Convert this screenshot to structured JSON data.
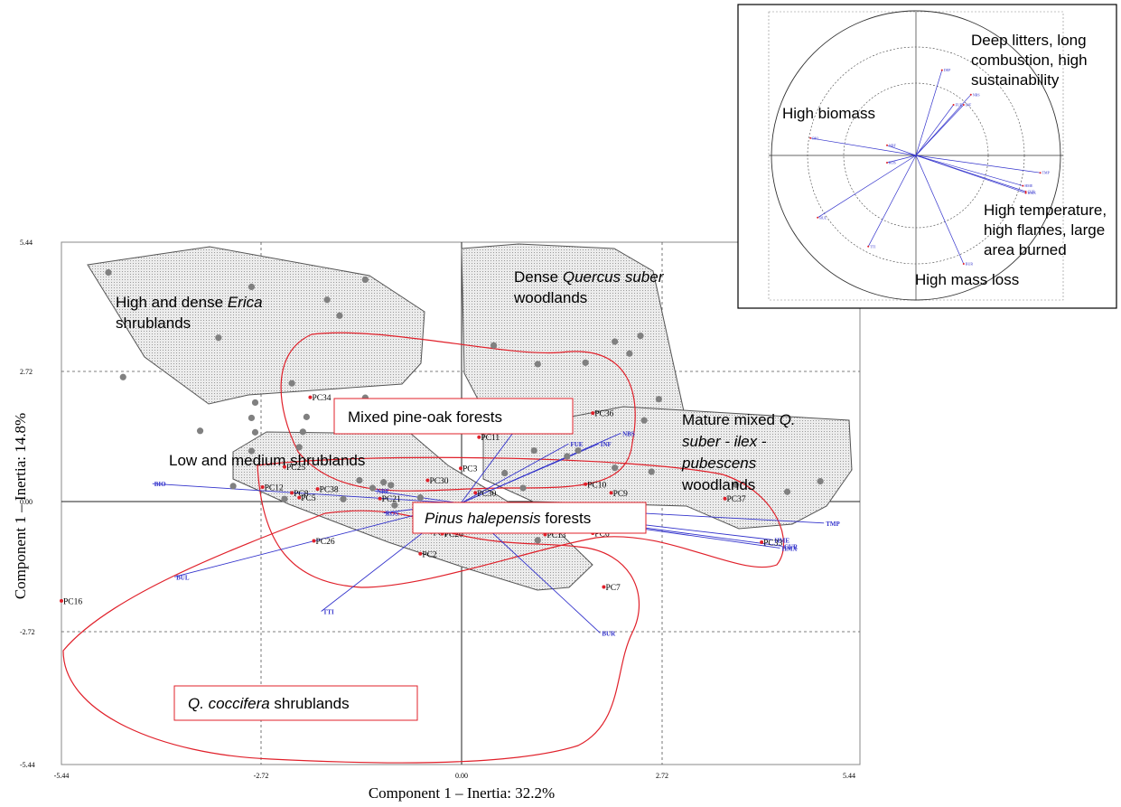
{
  "chart_data": [
    {
      "type": "scatter",
      "title": "",
      "xlabel": "Component 1 – Inertia: 32.2%",
      "ylabel": "Component 1 – Inertia: 14.8%",
      "xlim": [
        -5.44,
        5.44
      ],
      "ylim": [
        -5.44,
        5.44
      ],
      "x_ticks": [
        "-5.44",
        "-2.72",
        "0.00",
        "2.72",
        "5.44"
      ],
      "y_ticks": [
        "5.44",
        "2.72",
        "0.00",
        "-2.72",
        "-5.44"
      ],
      "grid": "dashed",
      "labeled_points": [
        {
          "label": "PC34",
          "x": -2.05,
          "y": 2.21
        },
        {
          "label": "PC36",
          "x": 1.8,
          "y": 1.88
        },
        {
          "label": "PC11",
          "x": 0.25,
          "y": 1.38
        },
        {
          "label": "PC25",
          "x": -2.4,
          "y": 0.76
        },
        {
          "label": "PC3",
          "x": 0.0,
          "y": 0.73
        },
        {
          "label": "PC30",
          "x": -0.45,
          "y": 0.48
        },
        {
          "label": "PC12",
          "x": -2.7,
          "y": 0.34
        },
        {
          "label": "PC38",
          "x": -1.95,
          "y": 0.3
        },
        {
          "label": "PC8",
          "x": -2.3,
          "y": 0.22
        },
        {
          "label": "PC5",
          "x": -2.2,
          "y": 0.12
        },
        {
          "label": "PC21",
          "x": -1.1,
          "y": 0.1
        },
        {
          "label": "PC10",
          "x": 1.7,
          "y": 0.4
        },
        {
          "label": "PC9",
          "x": 2.05,
          "y": 0.22
        },
        {
          "label": "PC37",
          "x": 3.6,
          "y": 0.1
        },
        {
          "label": "PC30",
          "x": 0.2,
          "y": 0.22
        },
        {
          "label": "PC17",
          "x": -0.4,
          "y": -0.6
        },
        {
          "label": "PC20",
          "x": -0.25,
          "y": -0.63
        },
        {
          "label": "PC13",
          "x": 1.15,
          "y": -0.65
        },
        {
          "label": "PC6",
          "x": 1.8,
          "y": -0.62
        },
        {
          "label": "PC4",
          "x": 2.1,
          "y": -0.48
        },
        {
          "label": "PC26",
          "x": -2.0,
          "y": -0.78
        },
        {
          "label": "PC2",
          "x": -0.55,
          "y": -1.05
        },
        {
          "label": "PC7",
          "x": 1.95,
          "y": -1.74
        },
        {
          "label": "PC16",
          "x": -5.44,
          "y": -2.03
        },
        {
          "label": "PC33",
          "x": 4.1,
          "y": -0.81
        }
      ],
      "unlabeled_points": [
        {
          "x": -4.8,
          "y": 4.81
        },
        {
          "x": -4.6,
          "y": 2.63
        },
        {
          "x": -3.3,
          "y": 3.45
        },
        {
          "x": -2.85,
          "y": 4.51
        },
        {
          "x": -2.8,
          "y": 2.1
        },
        {
          "x": -2.3,
          "y": 2.5
        },
        {
          "x": -1.82,
          "y": 4.24
        },
        {
          "x": -1.65,
          "y": 3.91
        },
        {
          "x": -1.3,
          "y": 2.2
        },
        {
          "x": -1.3,
          "y": 4.66
        },
        {
          "x": -1.47,
          "y": 2.03
        },
        {
          "x": -2.85,
          "y": 1.78
        },
        {
          "x": -2.8,
          "y": 1.48
        },
        {
          "x": -2.1,
          "y": 1.8
        },
        {
          "x": -2.15,
          "y": 1.49
        },
        {
          "x": -2.85,
          "y": 1.09
        },
        {
          "x": -3.55,
          "y": 1.51
        },
        {
          "x": -2.2,
          "y": 1.17
        },
        {
          "x": 0.45,
          "y": 3.29
        },
        {
          "x": 1.05,
          "y": 2.9
        },
        {
          "x": 1.7,
          "y": 2.93
        },
        {
          "x": 2.1,
          "y": 3.37
        },
        {
          "x": 2.3,
          "y": 3.12
        },
        {
          "x": 2.45,
          "y": 3.49
        },
        {
          "x": 2.7,
          "y": 2.17
        },
        {
          "x": 2.5,
          "y": 1.73
        },
        {
          "x": 0.35,
          "y": 2.04
        },
        {
          "x": 1.1,
          "y": 1.78
        },
        {
          "x": 1.4,
          "y": 1.53
        },
        {
          "x": 2.1,
          "y": 0.74
        },
        {
          "x": 1.6,
          "y": 1.1
        },
        {
          "x": 1.45,
          "y": 0.98
        },
        {
          "x": 0.6,
          "y": 0.63
        },
        {
          "x": 0.85,
          "y": 0.32
        },
        {
          "x": 1.0,
          "y": 1.1
        },
        {
          "x": 3.75,
          "y": 0.39
        },
        {
          "x": 4.45,
          "y": 0.24
        },
        {
          "x": 4.9,
          "y": 0.46
        },
        {
          "x": 2.6,
          "y": 0.66
        },
        {
          "x": -3.1,
          "y": 0.36
        },
        {
          "x": -2.4,
          "y": 0.09
        },
        {
          "x": -1.6,
          "y": 0.09
        },
        {
          "x": -1.2,
          "y": 0.32
        },
        {
          "x": -1.05,
          "y": 0.44
        },
        {
          "x": -0.95,
          "y": 0.38
        },
        {
          "x": -0.55,
          "y": 0.12
        },
        {
          "x": -0.9,
          "y": -0.04
        },
        {
          "x": -1.38,
          "y": 0.48
        },
        {
          "x": -0.25,
          "y": -0.36
        },
        {
          "x": 0.35,
          "y": -0.48
        },
        {
          "x": 0.6,
          "y": -0.41
        },
        {
          "x": 0.65,
          "y": -0.49
        },
        {
          "x": 0.2,
          "y": -0.51
        },
        {
          "x": 1.05,
          "y": -0.48
        },
        {
          "x": 1.05,
          "y": -0.77
        },
        {
          "x": 0.7,
          "y": -0.5
        },
        {
          "x": -0.4,
          "y": -0.51
        }
      ],
      "variable_vectors": [
        {
          "label": "DEP",
          "x": 1.02,
          "y": 2.1
        },
        {
          "label": "NBS",
          "x": 2.18,
          "y": 1.46
        },
        {
          "label": "FUE",
          "x": 1.47,
          "y": 1.24
        },
        {
          "label": "INF",
          "x": 1.88,
          "y": 1.24
        },
        {
          "label": "BIO",
          "x": -4.2,
          "y": 0.41
        },
        {
          "label": "NBF",
          "x": -1.17,
          "y": 0.26
        },
        {
          "label": "ROS",
          "x": -1.05,
          "y": -0.2
        },
        {
          "label": "TMP",
          "x": 4.95,
          "y": -0.41
        },
        {
          "label": "HME",
          "x": 4.25,
          "y": -0.76
        },
        {
          "label": "CUR",
          "x": 4.38,
          "y": -0.89
        },
        {
          "label": "HMX",
          "x": 4.35,
          "y": -0.93
        },
        {
          "label": "BUL",
          "x": -3.9,
          "y": -1.53
        },
        {
          "label": "TTI",
          "x": -1.9,
          "y": -2.25
        },
        {
          "label": "BUR",
          "x": 1.9,
          "y": -2.7
        }
      ],
      "annotations": [
        "High and dense Erica shrublands",
        "Dense Quercus suber woodlands",
        "Mixed pine-oak forests",
        "Mature mixed Q. suber - ilex - pubescens woodlands",
        "Low and medium shrublands",
        "Pinus halepensis forests",
        "Q. coccifera shrublands"
      ]
    },
    {
      "type": "scatter",
      "title": "",
      "annotations": [
        "Deep litters, long combustion, high sustainability",
        "High biomass",
        "High temperature, high flames, large area burned",
        "High mass loss"
      ],
      "variable_vectors": [
        {
          "label": "DEP",
          "x": 0.18,
          "y": 0.59
        },
        {
          "label": "NBS",
          "x": 0.38,
          "y": 0.42
        },
        {
          "label": "FUE",
          "x": 0.26,
          "y": 0.35
        },
        {
          "label": "INF",
          "x": 0.33,
          "y": 0.35
        },
        {
          "label": "BIO",
          "x": -0.73,
          "y": 0.12
        },
        {
          "label": "NBF",
          "x": -0.2,
          "y": 0.07
        },
        {
          "label": "ROS",
          "x": -0.2,
          "y": -0.05
        },
        {
          "label": "TMP",
          "x": 0.86,
          "y": -0.12
        },
        {
          "label": "HME",
          "x": 0.74,
          "y": -0.21
        },
        {
          "label": "CUR",
          "x": 0.76,
          "y": -0.25
        },
        {
          "label": "HMX",
          "x": 0.76,
          "y": -0.26
        },
        {
          "label": "BUL",
          "x": -0.68,
          "y": -0.43
        },
        {
          "label": "TTI",
          "x": -0.33,
          "y": -0.63
        },
        {
          "label": "BUR",
          "x": 0.33,
          "y": -0.75
        }
      ]
    }
  ],
  "text": {
    "xlabel": "Component 1 – Inertia: 32.2%",
    "ylabel": "Component 1 – Inertia: 14.8%",
    "ticks": {
      "x0": "-5.44",
      "x1": "-2.72",
      "x2": "0.00",
      "x3": "2.72",
      "x4": "5.44",
      "y0": "5.44",
      "y1": "2.72",
      "y2": "0.00",
      "y3": "-2.72",
      "y4": "-5.44"
    },
    "erica_1": "High and dense ",
    "erica_2": "Erica",
    "erica_3": "shrublands",
    "suber_1": "Dense ",
    "suber_2": "Quercus suber",
    "suber_3": "woodlands",
    "mixed": "Mixed pine-oak forests",
    "mature_1": "Mature mixed ",
    "mature_2": "Q.",
    "mature_3": "suber - ilex -",
    "mature_4": "pubescens",
    "mature_5": "woodlands",
    "low": "Low and medium shrublands",
    "pinus_1": "Pinus halepensis",
    "pinus_2": " forests",
    "cocc_1": "Q. coccifera",
    "cocc_2": " shrublands",
    "inset_deep_1": "Deep litters, long",
    "inset_deep_2": "combustion, high",
    "inset_deep_3": "sustainability",
    "inset_bio": "High biomass",
    "inset_temp_1": "High temperature,",
    "inset_temp_2": "high flames, large",
    "inset_temp_3": "area burned",
    "inset_mass": "High mass loss"
  },
  "colors": {
    "points": "#808080",
    "labeled_points": "#e0202a",
    "vectors": "#3333cc",
    "group_outline": "#e0202a",
    "hull_fill": "#d8d8d8",
    "hull_stroke": "#555555"
  }
}
